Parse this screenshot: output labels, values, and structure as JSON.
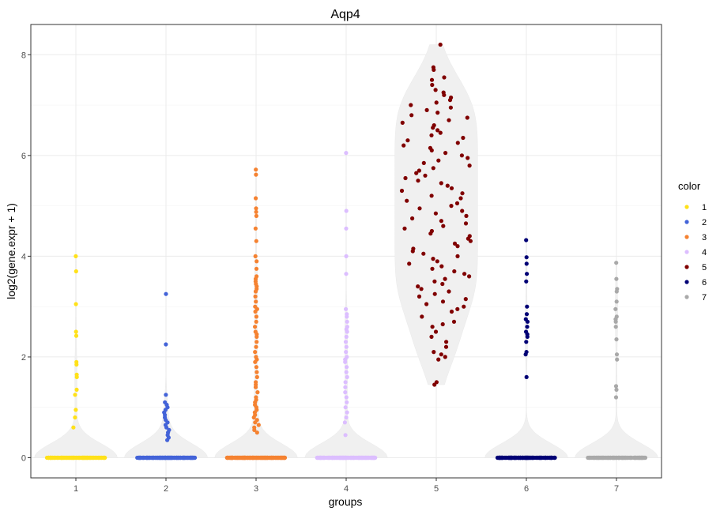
{
  "chart_data": {
    "type": "scatter",
    "title": "Aqp4",
    "xlabel": "groups",
    "ylabel": "log2(gene.expr + 1)",
    "categories": [
      "1",
      "2",
      "3",
      "4",
      "5",
      "6",
      "7"
    ],
    "ylim": [
      -0.4,
      8.6
    ],
    "yticks": [
      0,
      2,
      4,
      6,
      8
    ],
    "grid": true,
    "legend": {
      "title": "color",
      "position": "right",
      "entries": [
        "1",
        "2",
        "3",
        "4",
        "5",
        "6",
        "7"
      ]
    },
    "colors": [
      "#FFE119",
      "#4363D8",
      "#F58231",
      "#DCBEFF",
      "#800000",
      "#000075",
      "#A9A9A9"
    ],
    "violin_color": "#f0f0f0",
    "series": [
      {
        "group": "1",
        "zero_count": 160,
        "values": [
          4.0,
          3.7,
          3.05,
          2.5,
          2.42,
          1.9,
          1.85,
          1.65,
          1.6,
          1.35,
          1.25,
          0.95,
          0.8,
          0.6
        ]
      },
      {
        "group": "2",
        "zero_count": 220,
        "values": [
          3.25,
          2.25,
          1.25,
          1.1,
          1.05,
          1.0,
          0.95,
          0.9,
          0.85,
          0.8,
          0.75,
          0.7,
          0.65,
          0.6,
          0.55,
          0.5,
          0.45,
          0.4,
          0.35
        ]
      },
      {
        "group": "3",
        "zero_count": 250,
        "values": [
          5.72,
          5.62,
          5.15,
          4.95,
          4.88,
          4.8,
          4.55,
          4.3,
          4.0,
          3.9,
          3.75,
          3.6,
          3.55,
          3.5,
          3.45,
          3.4,
          3.35,
          3.3,
          3.2,
          3.1,
          3.0,
          2.95,
          2.9,
          2.8,
          2.7,
          2.6,
          2.5,
          2.45,
          2.4,
          2.3,
          2.2,
          2.1,
          2.0,
          1.95,
          1.9,
          1.8,
          1.7,
          1.6,
          1.5,
          1.45,
          1.4,
          1.3,
          1.2,
          1.15,
          1.1,
          1.05,
          1.0,
          0.95,
          0.9,
          0.85,
          0.8,
          0.75,
          0.7,
          0.65,
          0.6,
          0.55,
          0.5
        ]
      },
      {
        "group": "4",
        "zero_count": 240,
        "values": [
          6.05,
          4.9,
          4.55,
          4.0,
          3.65,
          2.95,
          2.85,
          2.8,
          2.7,
          2.6,
          2.55,
          2.5,
          2.4,
          2.3,
          2.2,
          2.1,
          2.0,
          1.95,
          1.9,
          1.8,
          1.7,
          1.6,
          1.5,
          1.4,
          1.3,
          1.2,
          1.1,
          1.0,
          0.9,
          0.8,
          0.7,
          0.45
        ]
      },
      {
        "group": "5",
        "zero_count": 0,
        "values": [
          8.2,
          7.75,
          7.7,
          7.55,
          7.5,
          7.4,
          7.3,
          7.25,
          7.2,
          7.15,
          7.1,
          7.05,
          7.0,
          6.95,
          6.9,
          6.85,
          6.8,
          6.75,
          6.7,
          6.65,
          6.6,
          6.55,
          6.5,
          6.45,
          6.4,
          6.35,
          6.3,
          6.25,
          6.2,
          6.15,
          6.1,
          6.05,
          6.0,
          5.95,
          5.9,
          5.85,
          5.8,
          5.75,
          5.7,
          5.65,
          5.6,
          5.55,
          5.5,
          5.45,
          5.4,
          5.35,
          5.3,
          5.25,
          5.2,
          5.15,
          5.1,
          5.05,
          5.0,
          4.95,
          4.9,
          4.85,
          4.8,
          4.75,
          4.7,
          4.65,
          4.6,
          4.55,
          4.5,
          4.45,
          4.4,
          4.35,
          4.3,
          4.25,
          4.2,
          4.15,
          4.1,
          4.05,
          4.0,
          3.95,
          3.9,
          3.85,
          3.8,
          3.75,
          3.7,
          3.65,
          3.6,
          3.55,
          3.5,
          3.45,
          3.4,
          3.35,
          3.3,
          3.25,
          3.2,
          3.15,
          3.1,
          3.05,
          3.0,
          2.95,
          2.9,
          2.8,
          2.7,
          2.65,
          2.6,
          2.5,
          2.4,
          2.3,
          2.2,
          2.1,
          2.05,
          2.0,
          1.95,
          1.5,
          1.45
        ]
      },
      {
        "group": "6",
        "zero_count": 200,
        "values": [
          4.32,
          3.98,
          3.85,
          3.65,
          3.5,
          3.0,
          2.85,
          2.75,
          2.7,
          2.6,
          2.5,
          2.45,
          2.4,
          2.3,
          2.1,
          2.05,
          1.6
        ]
      },
      {
        "group": "7",
        "zero_count": 180,
        "values": [
          3.87,
          3.55,
          3.35,
          3.3,
          3.1,
          2.95,
          2.8,
          2.75,
          2.7,
          2.6,
          2.35,
          2.05,
          1.95,
          1.42,
          1.35,
          1.2
        ]
      }
    ]
  }
}
